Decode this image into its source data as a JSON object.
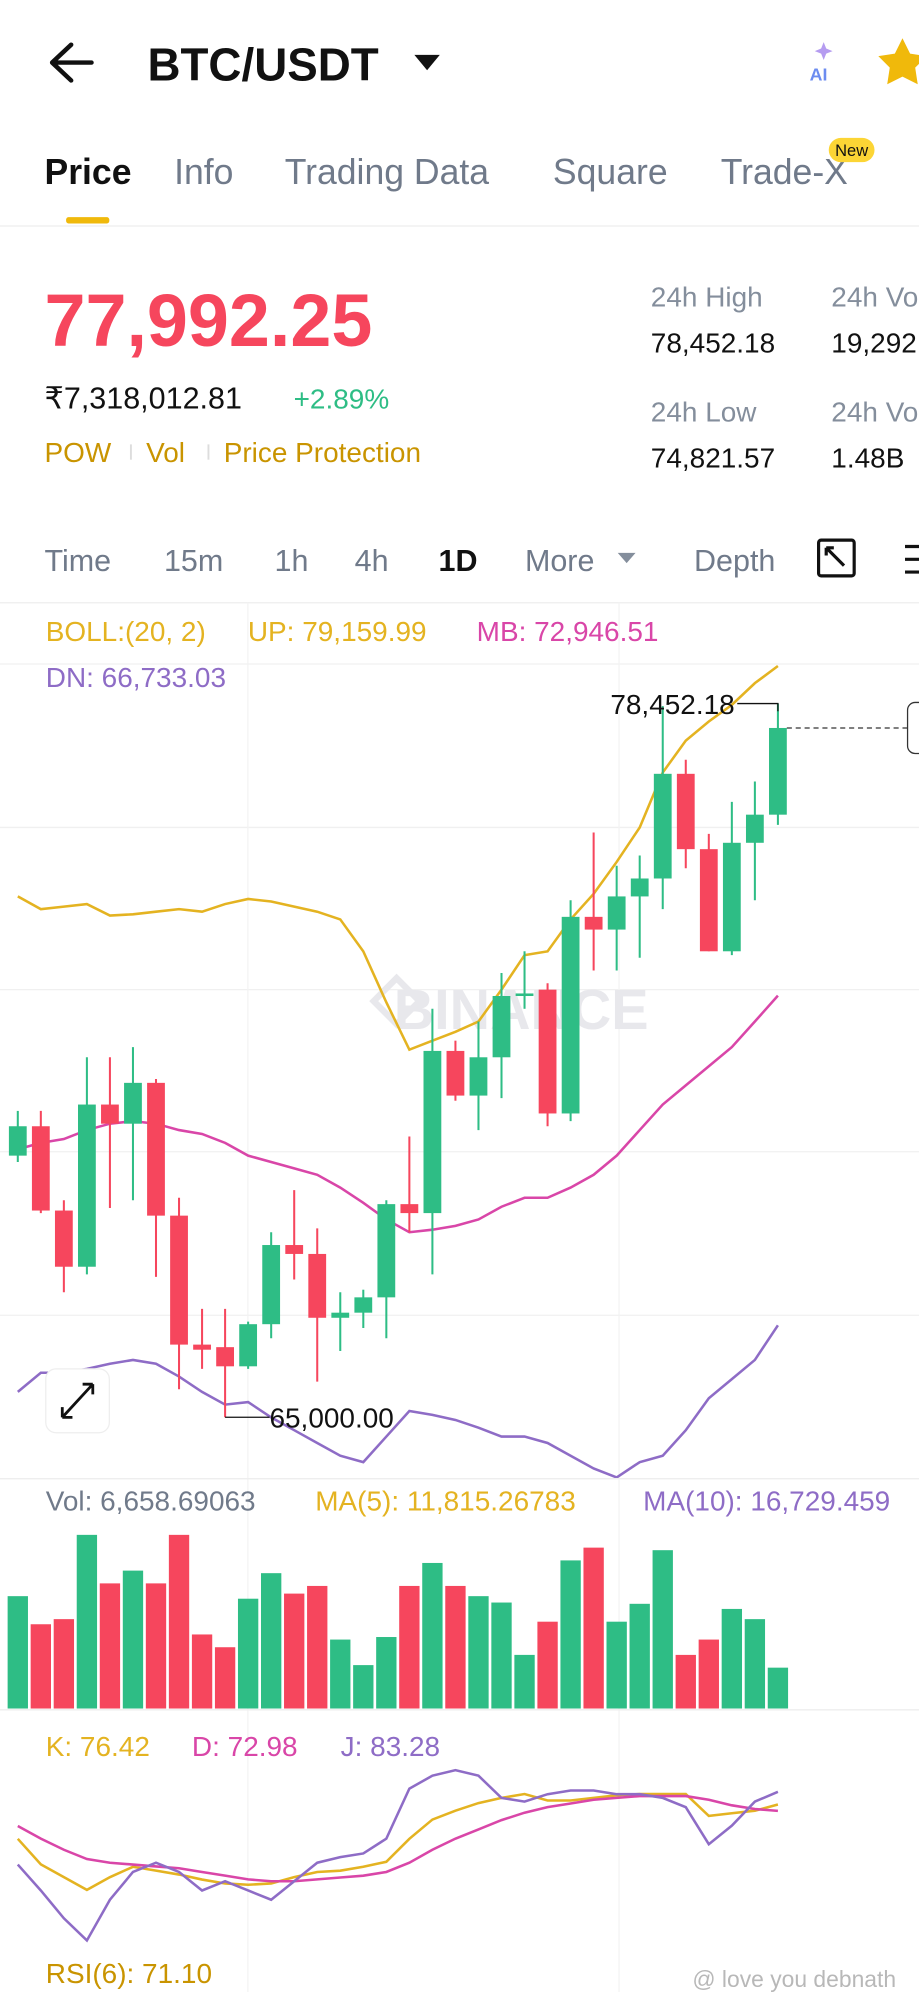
{
  "header": {
    "title": "BTC/USDT",
    "ai": "AI"
  },
  "tabs": {
    "items": [
      "Price",
      "Info",
      "Trading Data",
      "Square",
      "Trade-X"
    ],
    "badge": "New",
    "active": 0
  },
  "price": {
    "last": "77,992.25",
    "fiat": "₹7,318,012.81",
    "change": "+2.89%",
    "tags": [
      "POW",
      "Vol",
      "Price Protection"
    ]
  },
  "stats": [
    {
      "label": "24h High",
      "value": "78,452.18"
    },
    {
      "label": "24h Vo",
      "value": "19,292"
    },
    {
      "label": "24h Low",
      "value": "74,821.57"
    },
    {
      "label": "24h Vo",
      "value": "1.48B"
    }
  ],
  "intervals": {
    "items": [
      "Time",
      "15m",
      "1h",
      "4h",
      "1D",
      "More",
      "Depth"
    ],
    "active": 4
  },
  "chart": {
    "type": "candlestick",
    "boll_title": "BOLL:(20, 2)",
    "boll_labels": [
      "UP: 79,159.99",
      "MB: 72,946.51",
      "DN: 66,733.03"
    ],
    "ylim": [
      63842,
      79198
    ],
    "up_color": "#2ebd85",
    "down_color": "#f6465d",
    "open": [
      69931,
      70485,
      68896,
      67837,
      70894,
      70533,
      71303,
      68800,
      66369,
      66321,
      65960,
      66754,
      68246,
      68078,
      66875,
      66971,
      67260,
      69017,
      68848,
      71905,
      71063,
      71785,
      72940,
      73060,
      70726,
      74432,
      74192,
      74817,
      75155,
      77128,
      75708,
      73783,
      75828,
      76358
    ],
    "high": [
      70774,
      70774,
      69089,
      71785,
      71785,
      71977,
      71376,
      69137,
      67043,
      67043,
      66802,
      68487,
      69282,
      68559,
      67356,
      67404,
      69089,
      70292,
      72699,
      72098,
      72459,
      73373,
      73783,
      73181,
      74745,
      76021,
      75395,
      75588,
      78404,
      77393,
      75997,
      76599,
      76984,
      78452.18
    ],
    "low": [
      69811,
      68848,
      67356,
      67693,
      68945,
      69089,
      67645,
      65527,
      65912,
      65000,
      65912,
      66490,
      67597,
      65671,
      66249,
      66682,
      66490,
      68487,
      67693,
      70966,
      70413,
      71014,
      72699,
      70485,
      70581,
      73421,
      73421,
      73662,
      74577,
      75347,
      73783,
      73710,
      74745,
      76166
    ],
    "close": [
      70485,
      68896,
      67837,
      70894,
      70533,
      71303,
      68800,
      66369,
      66273,
      65960,
      66754,
      68246,
      68078,
      66875,
      66971,
      67260,
      69017,
      68848,
      71905,
      71063,
      71785,
      72940,
      72988,
      70726,
      74432,
      74192,
      74817,
      75155,
      77128,
      75708,
      73783,
      75828,
      76358,
      77992.25
    ],
    "boll": [
      {
        "color": "#e4b321",
        "values": [
          74817,
          74577,
          74625,
          74673,
          74456,
          74480,
          74529,
          74577,
          74529,
          74673,
          74769,
          74721,
          74625,
          74529,
          74384,
          73782,
          72820,
          71929,
          72098,
          72266,
          72459,
          73060,
          73710,
          73782,
          74384,
          74866,
          75467,
          76117,
          77152,
          77754,
          78115,
          78428,
          78837,
          79159.99
        ]
      },
      {
        "color": "#d946a8",
        "values": [
          70052,
          70172,
          70244,
          70413,
          70533,
          70581,
          70533,
          70413,
          70340,
          70172,
          69931,
          69811,
          69691,
          69570,
          69329,
          69041,
          68728,
          68487,
          68535,
          68607,
          68728,
          68968,
          69137,
          69137,
          69329,
          69570,
          69931,
          70413,
          70894,
          71255,
          71616,
          71977,
          72459,
          72946.51
        ]
      },
      {
        "color": "#8e6cc6",
        "values": [
          65478,
          65839,
          65839,
          65912,
          66008,
          66080,
          66008,
          65767,
          65478,
          65238,
          65286,
          64997,
          64756,
          64515,
          64275,
          64154,
          64636,
          65117,
          65045,
          64949,
          64804,
          64636,
          64636,
          64515,
          64275,
          64034,
          63866,
          64154,
          64275,
          64756,
          65358,
          65719,
          66080,
          66733.03
        ]
      }
    ],
    "high_label": "78,452.18",
    "low_label": "65,000.00",
    "watermark": "BINANCE"
  },
  "volume": {
    "labels": [
      "Vol: 6,658.69063",
      "MA(5): 11,815.26783",
      "MA(10): 16,729.459"
    ],
    "ylim": [
      0,
      30796
    ],
    "values": [
      18311,
      13733,
      14566,
      28299,
      20392,
      22473,
      20392,
      28299,
      12069,
      9988,
      17895,
      22057,
      18727,
      19976,
      11236,
      7075,
      11652,
      19976,
      23721,
      19976,
      18311,
      17271,
      8739,
      14150,
      24137,
      26218,
      14150,
      17063,
      25802,
      8739,
      11236,
      16230,
      14566,
      6658.69
    ]
  },
  "kdj": {
    "labels": [
      "K: 76.42",
      "D: 72.98",
      "J: 83.28"
    ],
    "ylim": [
      0,
      100
    ],
    "series": [
      {
        "color": "#e4b321",
        "values": [
          57.9,
          44.1,
          37.2,
          30.3,
          37.2,
          42.8,
          40.7,
          38.6,
          35.9,
          33.8,
          33.1,
          33.8,
          37.2,
          40,
          40.7,
          42.8,
          45.5,
          57.9,
          68.3,
          73.1,
          77.2,
          80,
          82.1,
          78.6,
          78.6,
          80,
          81.4,
          82.1,
          82.1,
          82.1,
          70.3,
          71.7,
          73.1,
          76.42
        ]
      },
      {
        "color": "#d946a8",
        "values": [
          64.8,
          58,
          52,
          47,
          45,
          44,
          43,
          42,
          40,
          38,
          36,
          35,
          35,
          36,
          37,
          38,
          40,
          45,
          52,
          58,
          63,
          68,
          72,
          75,
          77,
          79,
          80,
          81,
          81,
          81,
          79,
          76,
          74,
          72.98
        ]
      },
      {
        "color": "#8e6cc6",
        "values": [
          44,
          30,
          15,
          3,
          25,
          40,
          45,
          40,
          30,
          35,
          30,
          25,
          35,
          45,
          48,
          50,
          58,
          85,
          92,
          95,
          92,
          80,
          78,
          82,
          84,
          84,
          82,
          82,
          80,
          75,
          55,
          65,
          78,
          83.28
        ]
      }
    ]
  },
  "rsi_label": "RSI(6): 71.10",
  "footer": "@ love you debnath"
}
